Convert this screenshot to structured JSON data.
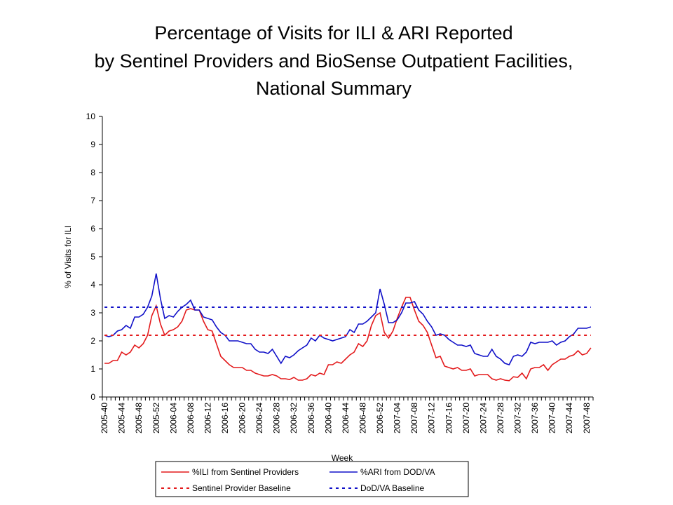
{
  "chart_data": {
    "type": "line",
    "title": [
      "Percentage of Visits for ILI & ARI Reported",
      "by Sentinel Providers and BioSense Outpatient Facilities,",
      "National Summary"
    ],
    "xlabel": "Week",
    "ylabel": "% of Visits for ILI",
    "ylim": [
      0,
      10
    ],
    "yticks": [
      0,
      1,
      2,
      3,
      4,
      5,
      6,
      7,
      8,
      9,
      10
    ],
    "x_tick_labels": [
      "2005-40",
      "2005-44",
      "2005-48",
      "2005-52",
      "2006-04",
      "2006-08",
      "2006-12",
      "2006-16",
      "2006-20",
      "2006-24",
      "2006-28",
      "2006-32",
      "2006-36",
      "2006-40",
      "2006-44",
      "2006-48",
      "2006-52",
      "2007-04",
      "2007-08",
      "2007-12",
      "2007-16",
      "2007-20",
      "2007-24",
      "2007-28",
      "2007-32",
      "2007-36",
      "2007-40",
      "2007-44",
      "2007-48"
    ],
    "x_weeks_start": "2005-40",
    "grid": false,
    "legend_position": "bottom",
    "series": [
      {
        "name": "%ILI from Sentinel Providers",
        "color": "#e31a1c",
        "style": "solid",
        "values": [
          1.2,
          1.2,
          1.3,
          1.3,
          1.6,
          1.5,
          1.6,
          1.85,
          1.75,
          1.9,
          2.2,
          2.9,
          3.25,
          2.6,
          2.2,
          2.35,
          2.4,
          2.5,
          2.7,
          3.1,
          3.15,
          3.1,
          3.1,
          2.7,
          2.4,
          2.35,
          1.9,
          1.45,
          1.3,
          1.15,
          1.05,
          1.05,
          1.05,
          0.95,
          0.95,
          0.85,
          0.8,
          0.75,
          0.75,
          0.8,
          0.75,
          0.65,
          0.65,
          0.62,
          0.7,
          0.6,
          0.6,
          0.65,
          0.8,
          0.75,
          0.85,
          0.8,
          1.15,
          1.15,
          1.25,
          1.2,
          1.35,
          1.5,
          1.6,
          1.9,
          1.8,
          2.0,
          2.55,
          2.9,
          3.0,
          2.3,
          2.1,
          2.35,
          2.8,
          3.2,
          3.55,
          3.55,
          3.1,
          2.7,
          2.55,
          2.3,
          1.85,
          1.4,
          1.45,
          1.1,
          1.05,
          1.0,
          1.05,
          0.95,
          0.95,
          1.0,
          0.75,
          0.8,
          0.8,
          0.8,
          0.65,
          0.6,
          0.65,
          0.6,
          0.58,
          0.72,
          0.7,
          0.85,
          0.65,
          1.0,
          1.05,
          1.05,
          1.15,
          0.95,
          1.15,
          1.25,
          1.35,
          1.35,
          1.45,
          1.5,
          1.65,
          1.5,
          1.55,
          1.75
        ],
        "baseline": null
      },
      {
        "name": "%ARI from DOD/VA",
        "color": "#1010c8",
        "style": "solid",
        "values": [
          2.2,
          2.15,
          2.2,
          2.35,
          2.4,
          2.55,
          2.45,
          2.85,
          2.85,
          2.95,
          3.2,
          3.6,
          4.4,
          3.5,
          2.8,
          2.9,
          2.85,
          3.05,
          3.2,
          3.3,
          3.45,
          3.1,
          3.1,
          2.85,
          2.8,
          2.75,
          2.5,
          2.3,
          2.2,
          2.0,
          2.0,
          2.0,
          1.95,
          1.9,
          1.9,
          1.7,
          1.6,
          1.6,
          1.55,
          1.7,
          1.45,
          1.2,
          1.45,
          1.4,
          1.5,
          1.65,
          1.75,
          1.85,
          2.1,
          2.0,
          2.2,
          2.1,
          2.05,
          2.0,
          2.05,
          2.1,
          2.15,
          2.4,
          2.3,
          2.6,
          2.6,
          2.7,
          2.85,
          3.0,
          3.85,
          3.3,
          2.65,
          2.65,
          2.75,
          3.0,
          3.35,
          3.35,
          3.4,
          3.1,
          2.95,
          2.7,
          2.5,
          2.2,
          2.25,
          2.2,
          2.05,
          1.95,
          1.85,
          1.85,
          1.8,
          1.85,
          1.55,
          1.5,
          1.45,
          1.45,
          1.7,
          1.45,
          1.35,
          1.2,
          1.15,
          1.45,
          1.5,
          1.45,
          1.6,
          1.95,
          1.9,
          1.95,
          1.95,
          1.95,
          2.0,
          1.85,
          1.95,
          2.0,
          2.15,
          2.25,
          2.45,
          2.45,
          2.45,
          2.5
        ]
      },
      {
        "name": "Sentinel Provider Baseline",
        "color": "#e31a1c",
        "style": "dashed",
        "constant": 2.2
      },
      {
        "name": "DoD/VA Baseline",
        "color": "#1010c8",
        "style": "dashed",
        "constant": 3.2
      }
    ]
  }
}
